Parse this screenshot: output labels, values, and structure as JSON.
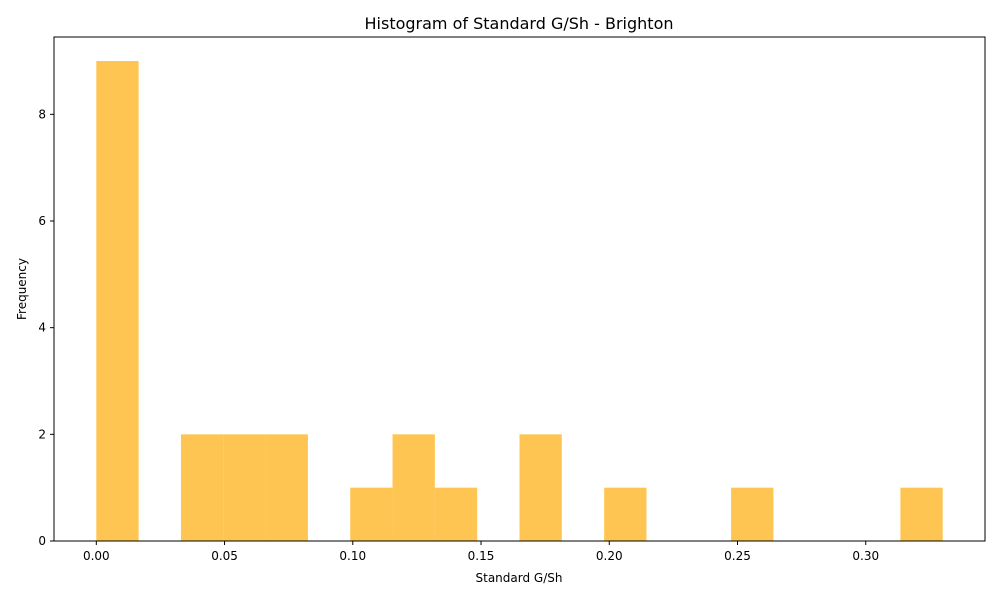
{
  "chart_data": {
    "type": "bar",
    "title": "Histogram of Standard G/Sh - Brighton",
    "xlabel": "Standard G/Sh",
    "ylabel": "Frequency",
    "xlim": [
      -0.0165,
      0.3465
    ],
    "ylim": [
      0,
      9.45
    ],
    "bar_color": "#FFB21A",
    "bar_opacity": 0.75,
    "grid": false,
    "bin_width": 0.0165,
    "bins": [
      {
        "x0": 0.0,
        "x1": 0.0165,
        "count": 9
      },
      {
        "x0": 0.0165,
        "x1": 0.033,
        "count": 0
      },
      {
        "x0": 0.033,
        "x1": 0.0495,
        "count": 2
      },
      {
        "x0": 0.0495,
        "x1": 0.066,
        "count": 2
      },
      {
        "x0": 0.066,
        "x1": 0.0825,
        "count": 2
      },
      {
        "x0": 0.0825,
        "x1": 0.099,
        "count": 0
      },
      {
        "x0": 0.099,
        "x1": 0.1155,
        "count": 1
      },
      {
        "x0": 0.1155,
        "x1": 0.132,
        "count": 2
      },
      {
        "x0": 0.132,
        "x1": 0.1485,
        "count": 1
      },
      {
        "x0": 0.1485,
        "x1": 0.165,
        "count": 0
      },
      {
        "x0": 0.165,
        "x1": 0.1815,
        "count": 2
      },
      {
        "x0": 0.1815,
        "x1": 0.198,
        "count": 0
      },
      {
        "x0": 0.198,
        "x1": 0.2145,
        "count": 1
      },
      {
        "x0": 0.2145,
        "x1": 0.231,
        "count": 0
      },
      {
        "x0": 0.231,
        "x1": 0.2475,
        "count": 0
      },
      {
        "x0": 0.2475,
        "x1": 0.264,
        "count": 1
      },
      {
        "x0": 0.264,
        "x1": 0.2805,
        "count": 0
      },
      {
        "x0": 0.2805,
        "x1": 0.297,
        "count": 0
      },
      {
        "x0": 0.297,
        "x1": 0.3135,
        "count": 0
      },
      {
        "x0": 0.3135,
        "x1": 0.33,
        "count": 1
      }
    ],
    "xticks": [
      0.0,
      0.05,
      0.1,
      0.15,
      0.2,
      0.25,
      0.3
    ],
    "xtick_labels": [
      "0.00",
      "0.05",
      "0.10",
      "0.15",
      "0.20",
      "0.25",
      "0.30"
    ],
    "yticks": [
      0,
      2,
      4,
      6,
      8
    ],
    "ytick_labels": [
      "0",
      "2",
      "4",
      "6",
      "8"
    ]
  }
}
